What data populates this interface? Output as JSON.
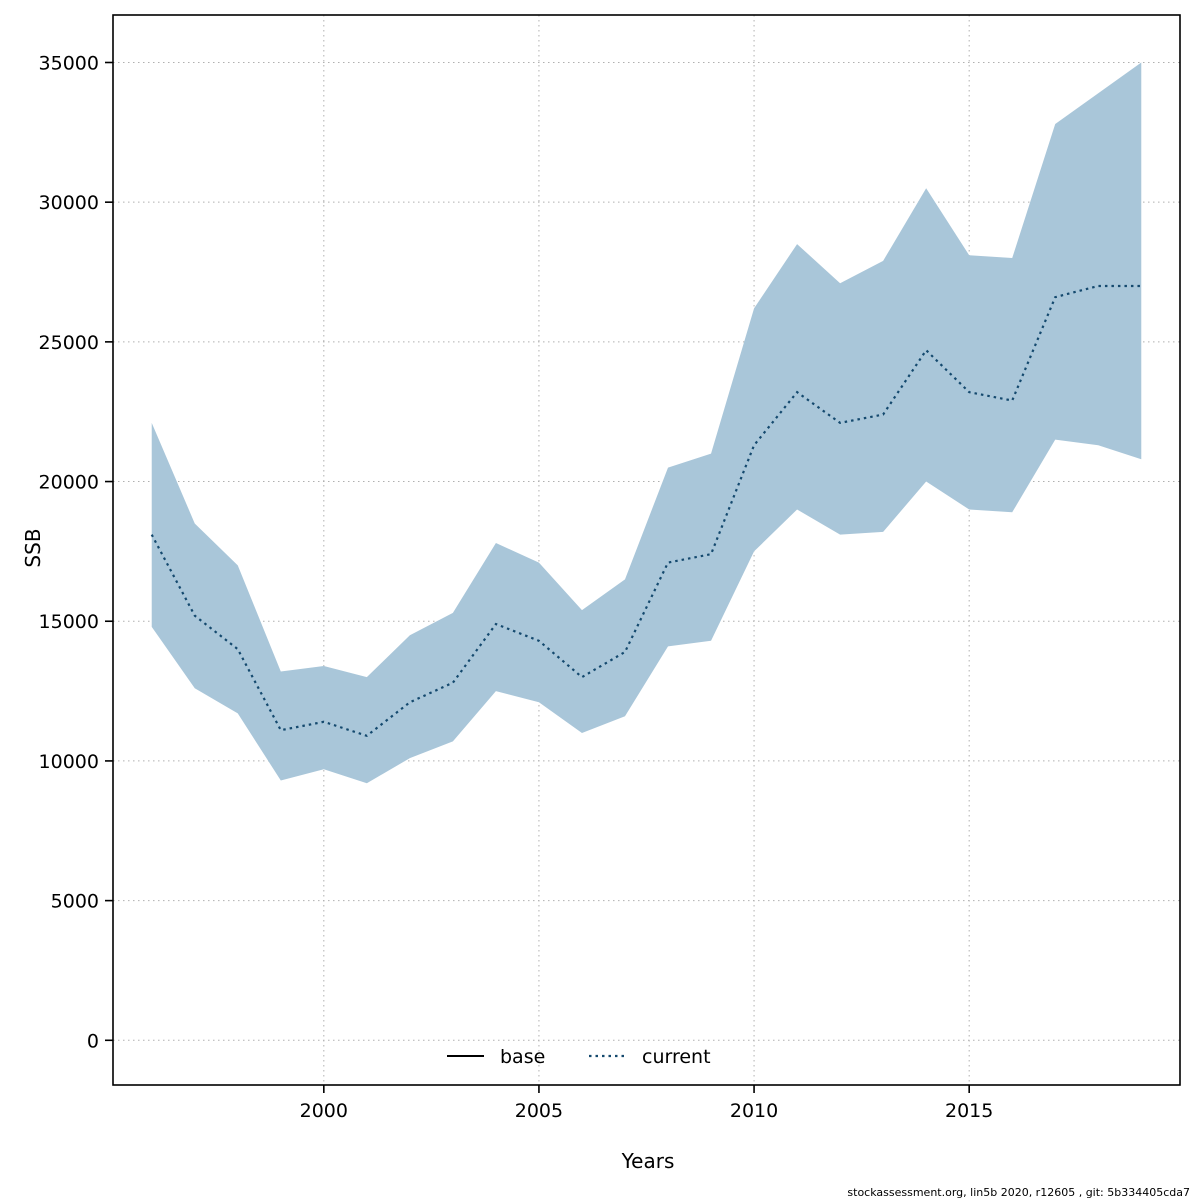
{
  "footer": "stockassessment.org, lin5b 2020, r12605 , git: 5b334405cda7",
  "chart_data": {
    "type": "line",
    "title": "",
    "xlabel": "Years",
    "ylabel": "SSB",
    "xlim": [
      1995.1,
      2019.9
    ],
    "ylim": [
      -1600,
      36700
    ],
    "xticks": [
      2000,
      2005,
      2010,
      2015
    ],
    "yticks": [
      0,
      5000,
      10000,
      15000,
      20000,
      25000,
      30000,
      35000
    ],
    "grid": true,
    "legend_position": "bottom-center-inside",
    "band_color": "#a9c6d9",
    "line_color": "#14496e",
    "legend": [
      {
        "label": "base",
        "style": "solid",
        "color": "#000000"
      },
      {
        "label": "current",
        "style": "dotted",
        "color": "#14496e"
      }
    ],
    "x": [
      1996,
      1997,
      1998,
      1999,
      2000,
      2001,
      2002,
      2003,
      2004,
      2005,
      2006,
      2007,
      2008,
      2009,
      2010,
      2011,
      2012,
      2013,
      2014,
      2015,
      2016,
      2017,
      2018,
      2019
    ],
    "series": [
      {
        "name": "current",
        "values": [
          18100,
          15200,
          14000,
          11100,
          11400,
          10900,
          12100,
          12800,
          14900,
          14300,
          13000,
          13900,
          17100,
          17400,
          21300,
          23200,
          22100,
          22400,
          24700,
          23200,
          22900,
          26600,
          27000,
          27000
        ]
      },
      {
        "name": "current_upper",
        "values": [
          22100,
          18500,
          17000,
          13200,
          13400,
          13000,
          14500,
          15300,
          17800,
          17100,
          15400,
          16500,
          20500,
          21000,
          26200,
          28500,
          27100,
          27900,
          30500,
          28100,
          28000,
          32800,
          33900,
          35000
        ]
      },
      {
        "name": "current_lower",
        "values": [
          14800,
          12600,
          11700,
          9300,
          9700,
          9200,
          10100,
          10700,
          12500,
          12100,
          11000,
          11600,
          14100,
          14300,
          17500,
          19000,
          18100,
          18200,
          20000,
          19000,
          18900,
          21500,
          21300,
          20800
        ]
      }
    ]
  }
}
